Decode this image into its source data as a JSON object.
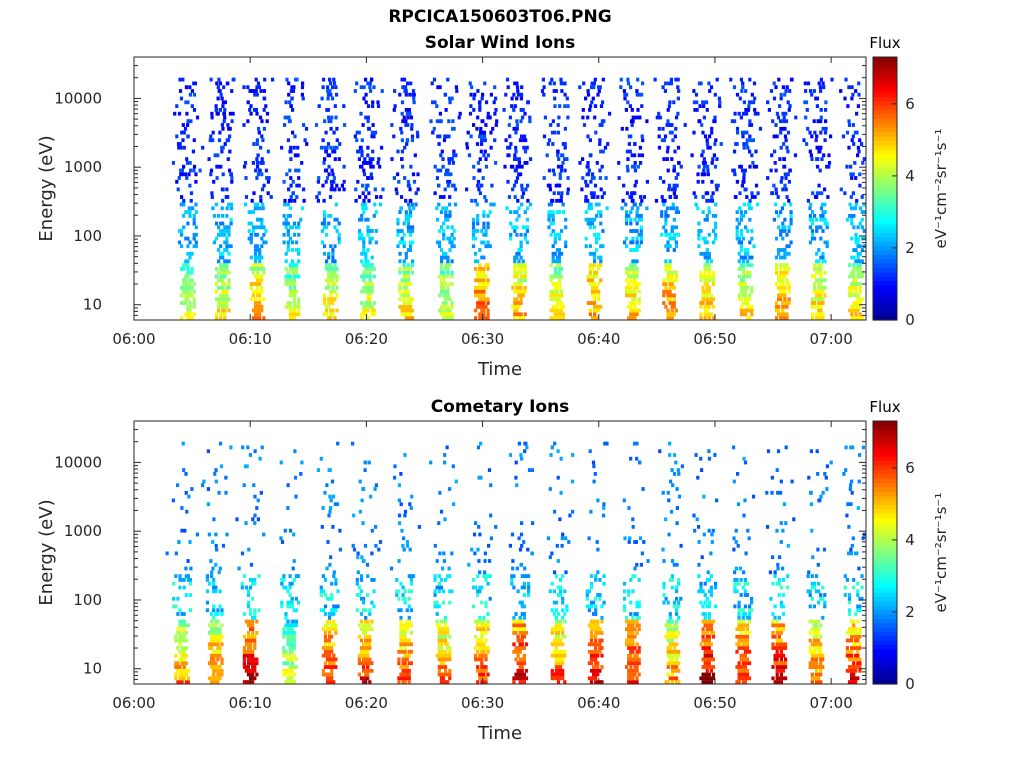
{
  "figure": {
    "title": "RPCICA150603T06.PNG"
  },
  "colormap": {
    "name": "jet",
    "stops": [
      "#00008f",
      "#0000ff",
      "#0080ff",
      "#00ffff",
      "#80ff80",
      "#ffff00",
      "#ff8000",
      "#ff0000",
      "#800000"
    ]
  },
  "chart_data": [
    {
      "type": "heatmap",
      "title": "Solar Wind Ions",
      "xlabel": "Time",
      "ylabel": "Energy (eV)",
      "x_ticks": [
        "06:00",
        "06:10",
        "06:20",
        "06:30",
        "06:40",
        "06:50",
        "07:00"
      ],
      "x_range_minutes": [
        0,
        63
      ],
      "y_scale": "log",
      "y_ticks": [
        "10",
        "100",
        "1000",
        "10000"
      ],
      "y_range": [
        6,
        40000
      ],
      "colorbar": {
        "label": "Flux",
        "units": "eV⁻¹cm⁻²sr⁻¹s⁻¹",
        "ticks": [
          "0",
          "2",
          "4",
          "6"
        ],
        "range": [
          0,
          7.3
        ]
      },
      "grid": false,
      "sweep_centers_min": [
        4.5,
        7.5,
        10.5,
        13.5,
        16.8,
        20.0,
        23.3,
        26.7,
        29.8,
        33.0,
        36.3,
        39.5,
        42.8,
        46.0,
        49.2,
        52.5,
        55.7,
        58.8,
        62.0
      ],
      "sweep_peak_flux": [
        4.5,
        4.8,
        5.3,
        4.4,
        4.8,
        4.6,
        4.8,
        4.6,
        5.8,
        5.2,
        4.8,
        5.5,
        5.0,
        5.6,
        5.2,
        4.8,
        5.4,
        5.0,
        4.8
      ],
      "energy_extent_ev": [
        6,
        20000
      ],
      "dominant_high_energy_flux": 1.0
    },
    {
      "type": "heatmap",
      "title": "Cometary Ions",
      "xlabel": "Time",
      "ylabel": "Energy (eV)",
      "x_ticks": [
        "06:00",
        "06:10",
        "06:20",
        "06:30",
        "06:40",
        "06:50",
        "07:00"
      ],
      "x_range_minutes": [
        0,
        63
      ],
      "y_scale": "log",
      "y_ticks": [
        "10",
        "100",
        "1000",
        "10000"
      ],
      "y_range": [
        6,
        40000
      ],
      "colorbar": {
        "label": "Flux",
        "units": "eV⁻¹cm⁻²sr⁻¹s⁻¹",
        "ticks": [
          "0",
          "2",
          "4",
          "6"
        ],
        "range": [
          0,
          7.3
        ]
      },
      "grid": false,
      "sweep_centers_min": [
        4.0,
        6.9,
        9.9,
        13.3,
        16.7,
        19.8,
        23.2,
        26.5,
        29.8,
        33.1,
        36.4,
        39.6,
        42.8,
        46.2,
        49.2,
        52.3,
        55.4,
        58.6,
        61.8
      ],
      "sweep_peak_flux": [
        5.5,
        5.8,
        7.0,
        4.5,
        6.5,
        6.3,
        6.0,
        5.8,
        6.2,
        6.8,
        6.0,
        6.8,
        6.5,
        5.6,
        7.0,
        6.5,
        6.8,
        6.0,
        6.5
      ],
      "energy_extent_ev": [
        6,
        20000
      ],
      "dominant_high_energy_flux": 1.8
    }
  ]
}
